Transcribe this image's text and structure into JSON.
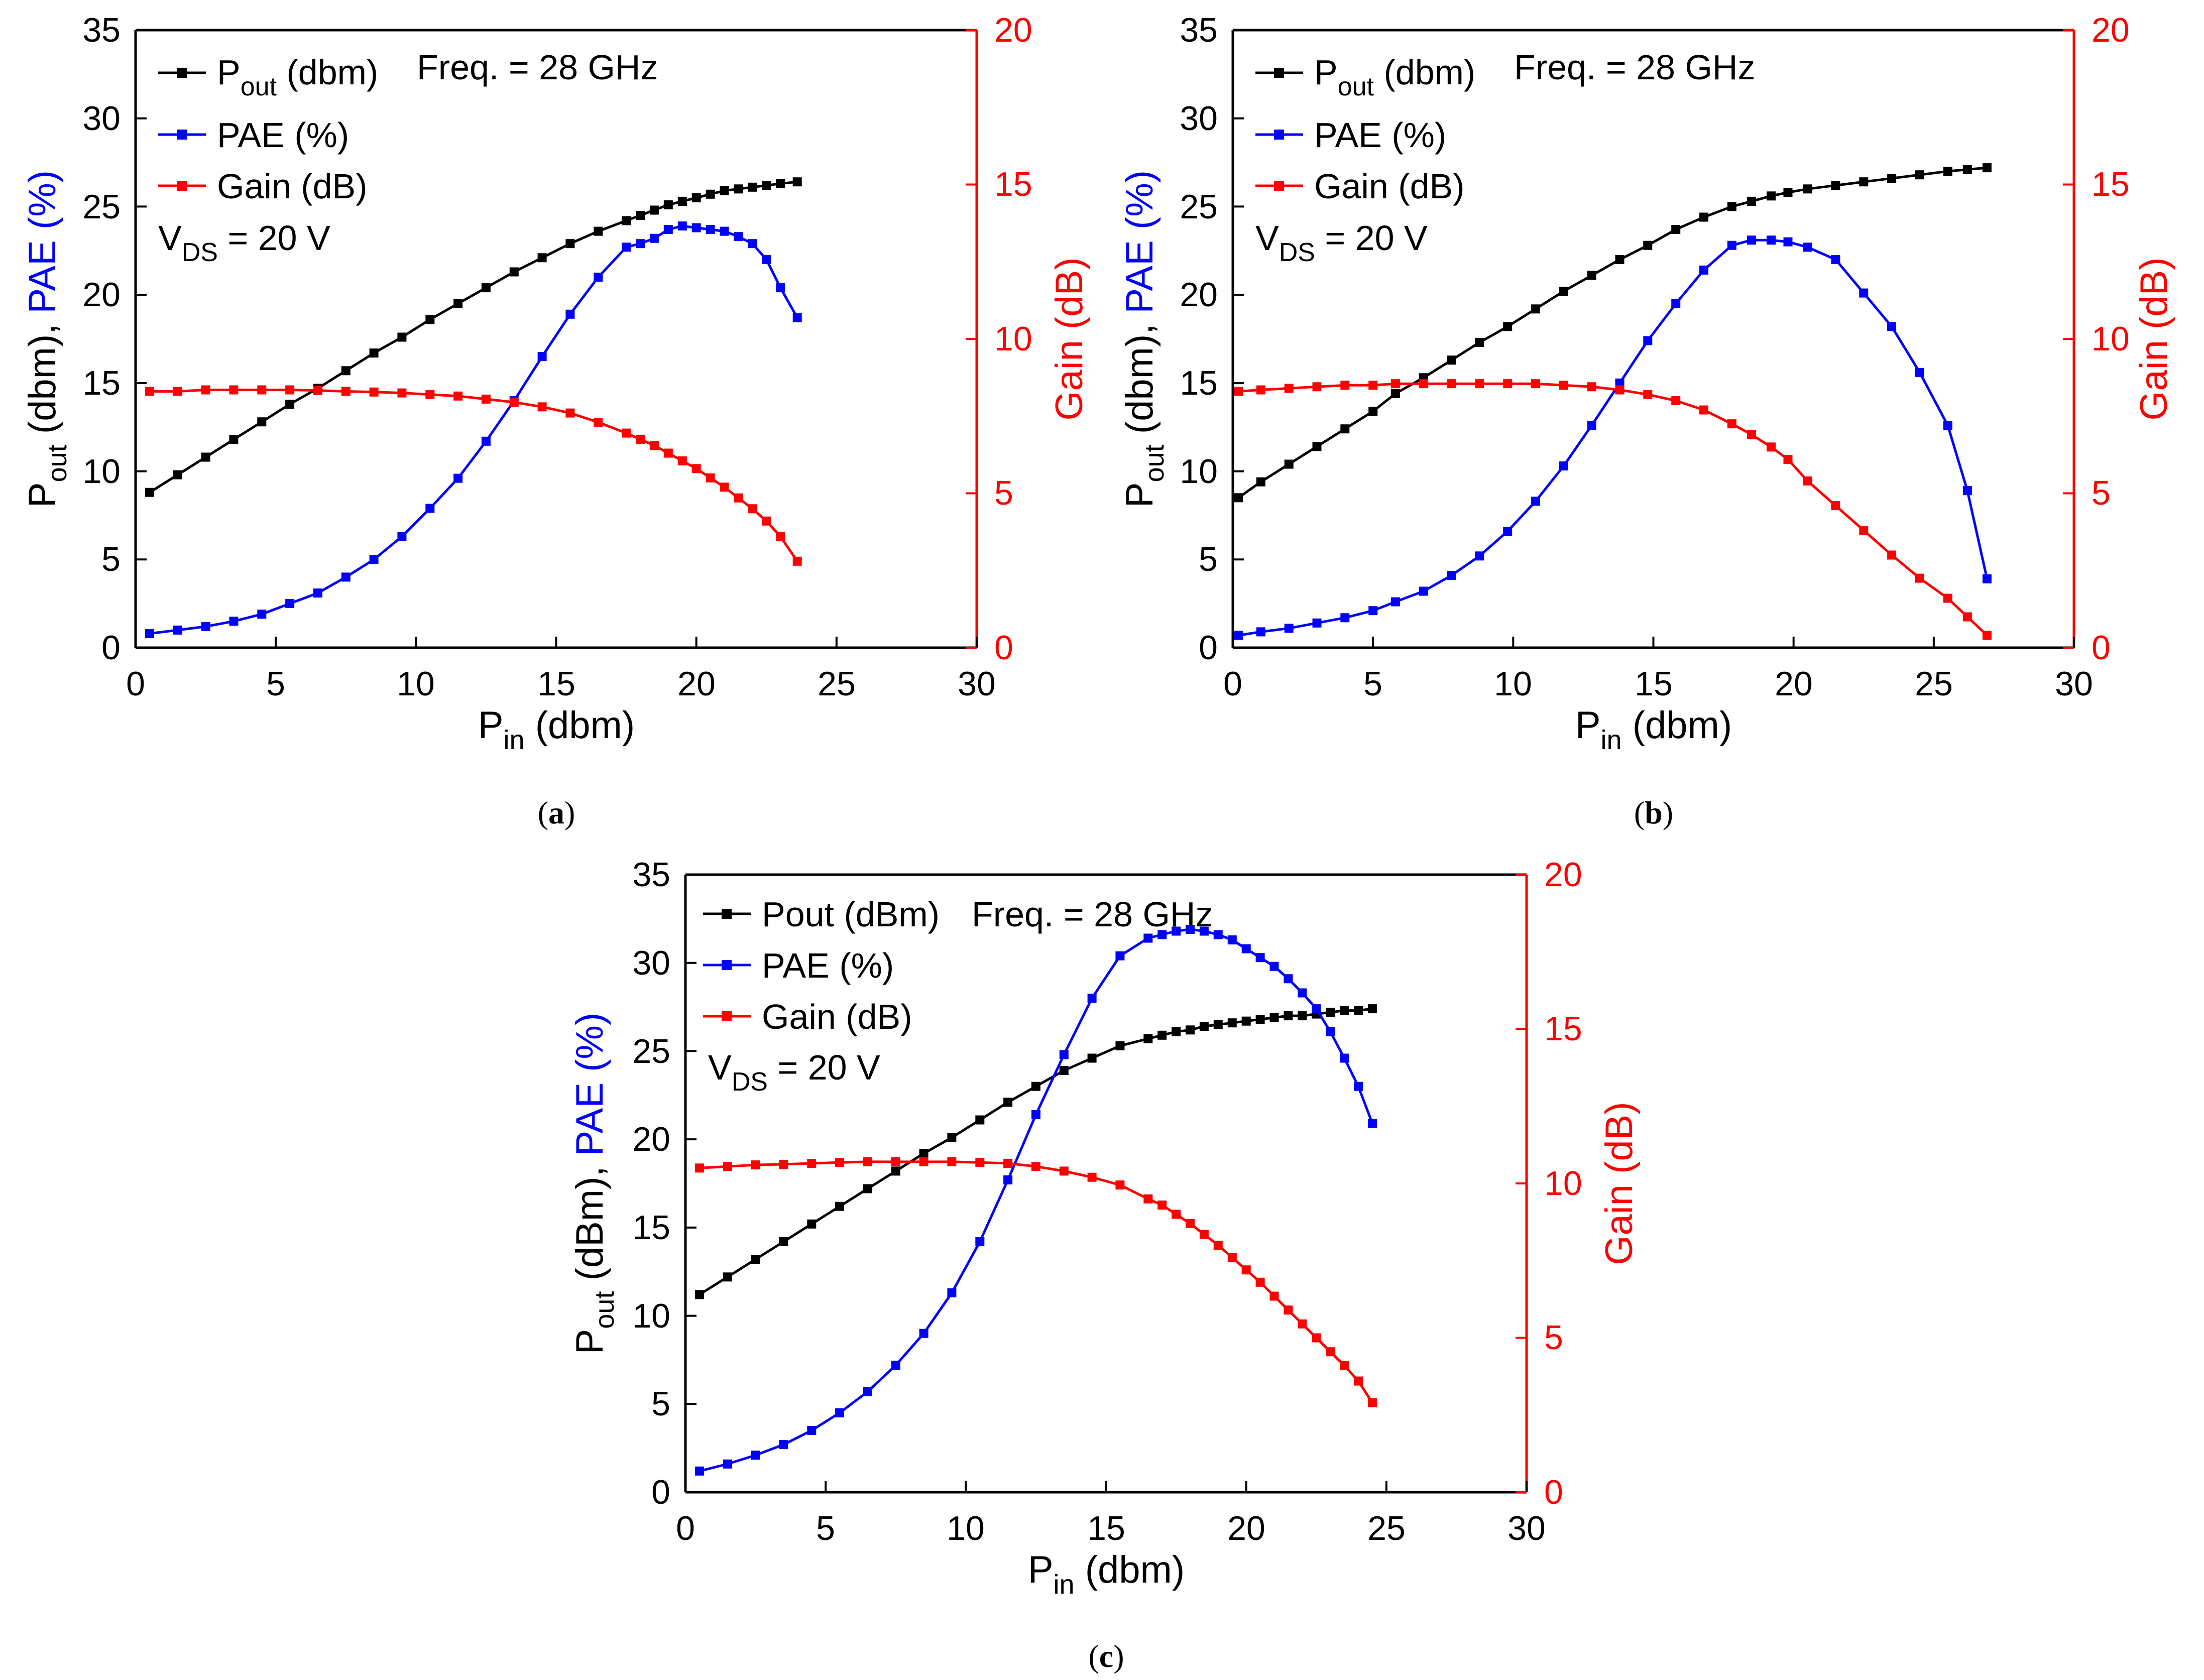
{
  "colors": {
    "pout": "#000000",
    "pae": "#0000ff",
    "gain": "#ff0000",
    "axis": "#000000",
    "background": "#ffffff"
  },
  "chart_data": [
    {
      "type": "line",
      "caption": "a",
      "xlabel_main": "P",
      "xlabel_sub": "in",
      "xlabel_rest": " (dbm)",
      "ylabel_left_main": "P",
      "ylabel_left_sub": "out",
      "ylabel_left_rest": " (dbm),",
      "ylabel_left_colored": "PAE (%)",
      "ylabel_right": "Gain (dB)",
      "xlim": [
        0,
        30
      ],
      "ylim_left": [
        0,
        35
      ],
      "ylim_right": [
        0,
        20
      ],
      "xticks": [
        "0",
        "5",
        "10",
        "15",
        "20",
        "25",
        "30"
      ],
      "yticks_left": [
        "0",
        "5",
        "10",
        "15",
        "20",
        "25",
        "30",
        "35"
      ],
      "yticks_right": [
        "0",
        "5",
        "10",
        "15",
        "20"
      ],
      "legend": [
        {
          "main": "P",
          "sub": "out",
          "rest": " (dbm)"
        },
        {
          "main": "PAE (%)"
        },
        {
          "main": "Gain (dB)"
        }
      ],
      "freq_text": "Freq. = 28 GHz",
      "vds_main": "V",
      "vds_sub": "DS",
      "vds_rest": " = 20 V",
      "x": [
        0.5,
        1.5,
        2.5,
        3.5,
        4.5,
        5.5,
        6.5,
        7.5,
        8.5,
        9.5,
        10.5,
        11.5,
        12.5,
        13.5,
        14.5,
        15.5,
        16.5,
        17.5,
        18,
        18.5,
        19,
        19.5,
        20,
        20.5,
        21,
        21.5,
        22,
        22.5,
        23,
        23.6
      ],
      "series": [
        {
          "name": "Pout (dbm)",
          "axis": "left",
          "values": [
            8.8,
            9.8,
            10.8,
            11.8,
            12.8,
            13.8,
            14.7,
            15.7,
            16.7,
            17.6,
            18.6,
            19.5,
            20.4,
            21.3,
            22.1,
            22.9,
            23.6,
            24.2,
            24.5,
            24.8,
            25.1,
            25.3,
            25.5,
            25.7,
            25.9,
            26.0,
            26.1,
            26.2,
            26.3,
            26.4
          ]
        },
        {
          "name": "PAE (%)",
          "axis": "left",
          "values": [
            0.8,
            1.0,
            1.2,
            1.5,
            1.9,
            2.5,
            3.1,
            4.0,
            5.0,
            6.3,
            7.9,
            9.6,
            11.7,
            14.0,
            16.5,
            18.9,
            21.0,
            22.7,
            22.9,
            23.2,
            23.7,
            23.9,
            23.8,
            23.7,
            23.6,
            23.3,
            22.9,
            22.0,
            20.4,
            18.7
          ]
        },
        {
          "name": "Gain (dB)",
          "axis": "right",
          "values": [
            8.3,
            8.3,
            8.35,
            8.35,
            8.35,
            8.35,
            8.33,
            8.3,
            8.28,
            8.25,
            8.2,
            8.15,
            8.05,
            7.95,
            7.8,
            7.6,
            7.3,
            6.95,
            6.75,
            6.55,
            6.3,
            6.05,
            5.8,
            5.5,
            5.2,
            4.85,
            4.5,
            4.1,
            3.6,
            2.8
          ]
        }
      ]
    },
    {
      "type": "line",
      "caption": "b",
      "xlabel_main": "P",
      "xlabel_sub": "in",
      "xlabel_rest": " (dbm)",
      "ylabel_left_main": "P",
      "ylabel_left_sub": "out",
      "ylabel_left_rest": " (dbm),",
      "ylabel_left_colored": "PAE (%)",
      "ylabel_right": "Gain (dB)",
      "xlim": [
        0,
        30
      ],
      "ylim_left": [
        0,
        35
      ],
      "ylim_right": [
        0,
        20
      ],
      "xticks": [
        "0",
        "5",
        "10",
        "15",
        "20",
        "25",
        "30"
      ],
      "yticks_left": [
        "0",
        "5",
        "10",
        "15",
        "20",
        "25",
        "30",
        "35"
      ],
      "yticks_right": [
        "0",
        "5",
        "10",
        "15",
        "20"
      ],
      "legend": [
        {
          "main": "P",
          "sub": "out",
          "rest": " (dbm)"
        },
        {
          "main": "PAE (%)"
        },
        {
          "main": "Gain (dB)"
        }
      ],
      "freq_text": "Freq. = 28 GHz",
      "vds_main": "V",
      "vds_sub": "DS",
      "vds_rest": " = 20 V",
      "x": [
        0.2,
        1.0,
        2.0,
        3.0,
        4.0,
        5.0,
        5.8,
        6.8,
        7.8,
        8.8,
        9.8,
        10.8,
        11.8,
        12.8,
        13.8,
        14.8,
        15.8,
        16.8,
        17.8,
        18.5,
        19.2,
        19.8,
        20.5,
        21.5,
        22.5,
        23.5,
        24.5,
        25.5,
        26.2,
        26.9
      ],
      "series": [
        {
          "name": "Pout (dbm)",
          "axis": "left",
          "values": [
            8.5,
            9.4,
            10.4,
            11.4,
            12.4,
            13.4,
            14.4,
            15.3,
            16.3,
            17.3,
            18.2,
            19.2,
            20.2,
            21.1,
            22.0,
            22.8,
            23.7,
            24.4,
            25.0,
            25.3,
            25.6,
            25.8,
            26.0,
            26.2,
            26.4,
            26.6,
            26.8,
            27.0,
            27.1,
            27.2
          ]
        },
        {
          "name": "PAE (%)",
          "axis": "left",
          "values": [
            0.7,
            0.9,
            1.1,
            1.4,
            1.7,
            2.1,
            2.6,
            3.2,
            4.1,
            5.2,
            6.6,
            8.3,
            10.3,
            12.6,
            15.0,
            17.4,
            19.5,
            21.4,
            22.8,
            23.1,
            23.1,
            23.0,
            22.7,
            22.0,
            20.1,
            18.2,
            15.6,
            12.6,
            8.9,
            3.9
          ]
        },
        {
          "name": "Gain (dB)",
          "axis": "right",
          "values": [
            8.3,
            8.35,
            8.4,
            8.45,
            8.5,
            8.5,
            8.55,
            8.55,
            8.55,
            8.55,
            8.55,
            8.55,
            8.5,
            8.45,
            8.35,
            8.2,
            8.0,
            7.7,
            7.25,
            6.9,
            6.5,
            6.1,
            5.4,
            4.6,
            3.8,
            3.0,
            2.25,
            1.6,
            1.0,
            0.4
          ]
        }
      ]
    },
    {
      "type": "line",
      "caption": "c",
      "xlabel_main": "P",
      "xlabel_sub": "in",
      "xlabel_rest": " (dbm)",
      "ylabel_left_main": "P",
      "ylabel_left_sub": "out",
      "ylabel_left_rest": " (dBm),",
      "ylabel_left_colored": "PAE (%)",
      "ylabel_right": "Gain (dB)",
      "xlim": [
        0,
        30
      ],
      "ylim_left": [
        0,
        35
      ],
      "ylim_right": [
        0,
        20
      ],
      "xticks": [
        "0",
        "5",
        "10",
        "15",
        "20",
        "25",
        "30"
      ],
      "yticks_left": [
        "0",
        "5",
        "10",
        "15",
        "20",
        "25",
        "30",
        "35"
      ],
      "yticks_right": [
        "0",
        "5",
        "10",
        "15",
        "20"
      ],
      "legend": [
        {
          "main": "Pout (dBm)"
        },
        {
          "main": "PAE (%)"
        },
        {
          "main": "Gain (dB)"
        }
      ],
      "freq_text": "Freq. = 28 GHz",
      "vds_main": "V",
      "vds_sub": "DS",
      "vds_rest": " = 20 V",
      "x": [
        0.5,
        1.5,
        2.5,
        3.5,
        4.5,
        5.5,
        6.5,
        7.5,
        8.5,
        9.5,
        10.5,
        11.5,
        12.5,
        13.5,
        14.5,
        15.5,
        16.5,
        17.0,
        17.5,
        18.0,
        18.5,
        19.0,
        19.5,
        20.0,
        20.5,
        21.0,
        21.5,
        22.0,
        22.5,
        23.0,
        23.5,
        24.0,
        24.5
      ],
      "series": [
        {
          "name": "Pout (dBm)",
          "axis": "left",
          "values": [
            11.2,
            12.2,
            13.2,
            14.2,
            15.2,
            16.2,
            17.2,
            18.2,
            19.2,
            20.1,
            21.1,
            22.1,
            23.0,
            23.9,
            24.6,
            25.3,
            25.7,
            25.9,
            26.1,
            26.2,
            26.4,
            26.5,
            26.6,
            26.7,
            26.8,
            26.9,
            27.0,
            27.0,
            27.1,
            27.2,
            27.3,
            27.3,
            27.4
          ]
        },
        {
          "name": "PAE (%)",
          "axis": "left",
          "values": [
            1.2,
            1.6,
            2.1,
            2.7,
            3.5,
            4.5,
            5.7,
            7.2,
            9.0,
            11.3,
            14.2,
            17.7,
            21.4,
            24.8,
            28.0,
            30.4,
            31.4,
            31.6,
            31.8,
            31.9,
            31.8,
            31.6,
            31.3,
            30.8,
            30.3,
            29.8,
            29.1,
            28.3,
            27.4,
            26.1,
            24.6,
            23.0,
            20.9
          ]
        },
        {
          "name": "Gain (dB)",
          "axis": "right",
          "values": [
            10.5,
            10.55,
            10.6,
            10.62,
            10.65,
            10.68,
            10.7,
            10.7,
            10.7,
            10.7,
            10.68,
            10.65,
            10.55,
            10.4,
            10.2,
            9.95,
            9.5,
            9.3,
            9.0,
            8.7,
            8.35,
            8.0,
            7.6,
            7.2,
            6.8,
            6.35,
            5.9,
            5.45,
            5.0,
            4.55,
            4.1,
            3.6,
            2.9
          ]
        }
      ]
    }
  ]
}
